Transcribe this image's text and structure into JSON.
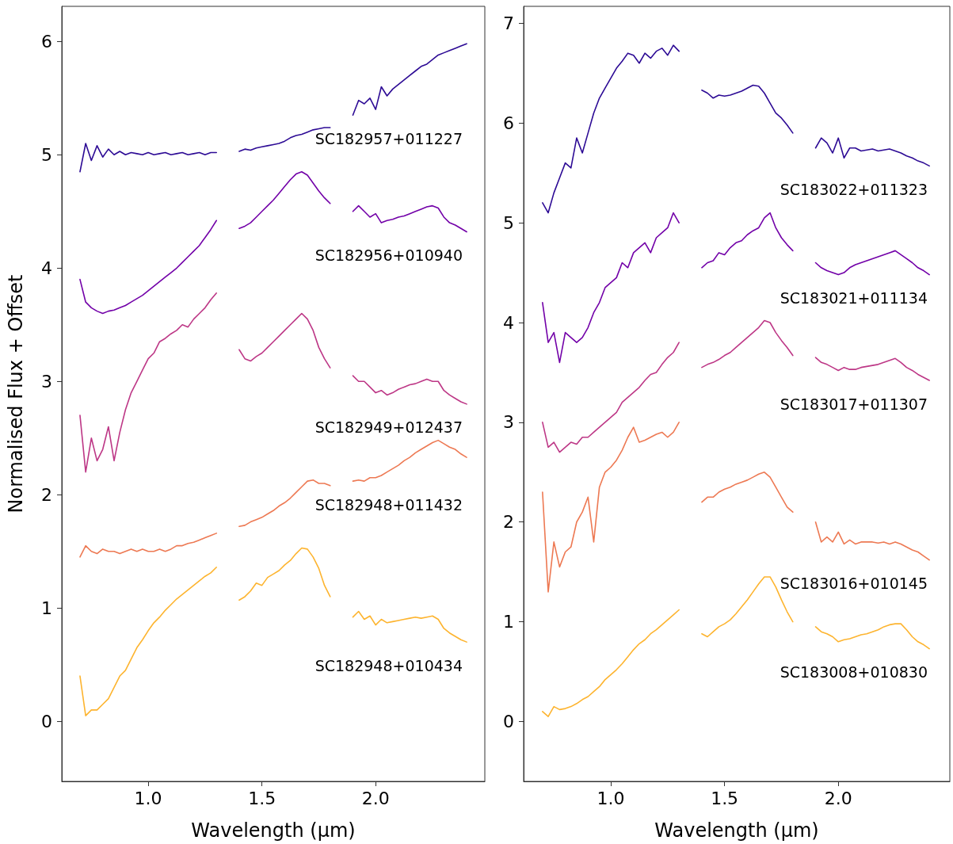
{
  "chart_data": [
    {
      "type": "line",
      "xlabel": "Wavelength (μm)",
      "ylabel": "Normalised Flux + Offset",
      "xlim": [
        0.62,
        2.48
      ],
      "ylim": [
        -0.53,
        6.31
      ],
      "xticks": [
        {
          "value": 1,
          "label": "1.0"
        },
        {
          "value": 1.5,
          "label": "1.5"
        },
        {
          "value": 2,
          "label": "2.0"
        }
      ],
      "yticks": [
        0,
        1,
        2,
        3,
        4,
        5,
        6
      ],
      "grid": false,
      "legend": false,
      "marker": "none",
      "line_style": "solid",
      "x": [
        0.7,
        0.725,
        0.75,
        0.775,
        0.8,
        0.825,
        0.85,
        0.875,
        0.9,
        0.925,
        0.95,
        0.975,
        1.0,
        1.025,
        1.05,
        1.075,
        1.1,
        1.125,
        1.15,
        1.175,
        1.2,
        1.225,
        1.25,
        1.275,
        1.3,
        1.35,
        1.4,
        1.425,
        1.45,
        1.475,
        1.5,
        1.525,
        1.55,
        1.575,
        1.6,
        1.625,
        1.65,
        1.675,
        1.7,
        1.725,
        1.75,
        1.775,
        1.8,
        1.85,
        1.9,
        1.925,
        1.95,
        1.975,
        2.0,
        2.025,
        2.05,
        2.075,
        2.1,
        2.125,
        2.15,
        2.175,
        2.2,
        2.225,
        2.25,
        2.275,
        2.3,
        2.325,
        2.35,
        2.375,
        2.4
      ],
      "series": [
        {
          "name": "SC182957+011227",
          "color": "#2d0b95",
          "values": [
            4.85,
            5.1,
            4.95,
            5.08,
            4.98,
            5.05,
            5.0,
            5.03,
            5.0,
            5.02,
            5.01,
            5.0,
            5.02,
            5.0,
            5.01,
            5.02,
            5.0,
            5.01,
            5.02,
            5.0,
            5.01,
            5.02,
            5.0,
            5.02,
            5.02,
            null,
            5.03,
            5.05,
            5.04,
            5.06,
            5.07,
            5.08,
            5.09,
            5.1,
            5.12,
            5.15,
            5.17,
            5.18,
            5.2,
            5.22,
            5.23,
            5.24,
            5.24,
            null,
            5.35,
            5.48,
            5.45,
            5.5,
            5.4,
            5.6,
            5.52,
            5.58,
            5.62,
            5.66,
            5.7,
            5.74,
            5.78,
            5.8,
            5.84,
            5.88,
            5.9,
            5.92,
            5.94,
            5.96,
            5.98
          ]
        },
        {
          "name": "SC182956+010940",
          "color": "#7201a8",
          "values": [
            3.9,
            3.7,
            3.65,
            3.62,
            3.6,
            3.62,
            3.63,
            3.65,
            3.67,
            3.7,
            3.73,
            3.76,
            3.8,
            3.84,
            3.88,
            3.92,
            3.96,
            4.0,
            4.05,
            4.1,
            4.15,
            4.2,
            4.27,
            4.34,
            4.42,
            null,
            4.35,
            4.37,
            4.4,
            4.45,
            4.5,
            4.55,
            4.6,
            4.66,
            4.72,
            4.78,
            4.83,
            4.85,
            4.82,
            4.75,
            4.68,
            4.62,
            4.57,
            null,
            4.5,
            4.55,
            4.5,
            4.45,
            4.48,
            4.4,
            4.42,
            4.43,
            4.45,
            4.46,
            4.48,
            4.5,
            4.52,
            4.54,
            4.55,
            4.53,
            4.45,
            4.4,
            4.38,
            4.35,
            4.32
          ]
        },
        {
          "name": "SC182949+012437",
          "color": "#bd3786",
          "values": [
            2.7,
            2.2,
            2.5,
            2.3,
            2.4,
            2.6,
            2.3,
            2.55,
            2.75,
            2.9,
            3.0,
            3.1,
            3.2,
            3.25,
            3.35,
            3.38,
            3.42,
            3.45,
            3.5,
            3.48,
            3.55,
            3.6,
            3.65,
            3.72,
            3.78,
            null,
            3.28,
            3.2,
            3.18,
            3.22,
            3.25,
            3.3,
            3.35,
            3.4,
            3.45,
            3.5,
            3.55,
            3.6,
            3.55,
            3.45,
            3.3,
            3.2,
            3.12,
            null,
            3.05,
            3.0,
            3.0,
            2.95,
            2.9,
            2.92,
            2.88,
            2.9,
            2.93,
            2.95,
            2.97,
            2.98,
            3.0,
            3.02,
            3.0,
            3.0,
            2.92,
            2.88,
            2.85,
            2.82,
            2.8
          ]
        },
        {
          "name": "SC182948+011432",
          "color": "#ed7953",
          "values": [
            1.45,
            1.55,
            1.5,
            1.48,
            1.52,
            1.5,
            1.5,
            1.48,
            1.5,
            1.52,
            1.5,
            1.52,
            1.5,
            1.5,
            1.52,
            1.5,
            1.52,
            1.55,
            1.55,
            1.57,
            1.58,
            1.6,
            1.62,
            1.64,
            1.66,
            null,
            1.72,
            1.73,
            1.76,
            1.78,
            1.8,
            1.83,
            1.86,
            1.9,
            1.93,
            1.97,
            2.02,
            2.07,
            2.12,
            2.13,
            2.1,
            2.1,
            2.08,
            null,
            2.12,
            2.13,
            2.12,
            2.15,
            2.15,
            2.17,
            2.2,
            2.23,
            2.26,
            2.3,
            2.33,
            2.37,
            2.4,
            2.43,
            2.46,
            2.48,
            2.45,
            2.42,
            2.4,
            2.36,
            2.33
          ]
        },
        {
          "name": "SC182948+010434",
          "color": "#fdb42f",
          "values": [
            0.4,
            0.05,
            0.1,
            0.1,
            0.15,
            0.2,
            0.3,
            0.4,
            0.45,
            0.55,
            0.65,
            0.72,
            0.8,
            0.87,
            0.92,
            0.98,
            1.03,
            1.08,
            1.12,
            1.16,
            1.2,
            1.24,
            1.28,
            1.31,
            1.36,
            null,
            1.07,
            1.1,
            1.15,
            1.22,
            1.2,
            1.27,
            1.3,
            1.33,
            1.38,
            1.42,
            1.48,
            1.53,
            1.52,
            1.45,
            1.35,
            1.2,
            1.1,
            null,
            0.92,
            0.97,
            0.9,
            0.93,
            0.85,
            0.9,
            0.87,
            0.88,
            0.89,
            0.9,
            0.91,
            0.92,
            0.91,
            0.92,
            0.93,
            0.9,
            0.82,
            0.78,
            0.75,
            0.72,
            0.7
          ]
        }
      ]
    },
    {
      "type": "line",
      "xlabel": "Wavelength (μm)",
      "xlim": [
        0.617,
        2.49
      ],
      "ylim": [
        -0.6,
        7.17
      ],
      "xticks": [
        {
          "value": 1,
          "label": "1.0"
        },
        {
          "value": 1.5,
          "label": "1.5"
        },
        {
          "value": 2,
          "label": "2.0"
        }
      ],
      "yticks": [
        0,
        1,
        2,
        3,
        4,
        5,
        6,
        7
      ],
      "grid": false,
      "legend": false,
      "marker": "none",
      "line_style": "solid",
      "x": [
        0.7,
        0.725,
        0.75,
        0.775,
        0.8,
        0.825,
        0.85,
        0.875,
        0.9,
        0.925,
        0.95,
        0.975,
        1.0,
        1.025,
        1.05,
        1.075,
        1.1,
        1.125,
        1.15,
        1.175,
        1.2,
        1.225,
        1.25,
        1.275,
        1.3,
        1.35,
        1.4,
        1.425,
        1.45,
        1.475,
        1.5,
        1.525,
        1.55,
        1.575,
        1.6,
        1.625,
        1.65,
        1.675,
        1.7,
        1.725,
        1.75,
        1.775,
        1.8,
        1.85,
        1.9,
        1.925,
        1.95,
        1.975,
        2.0,
        2.025,
        2.05,
        2.075,
        2.1,
        2.125,
        2.15,
        2.175,
        2.2,
        2.225,
        2.25,
        2.275,
        2.3,
        2.325,
        2.35,
        2.375,
        2.4
      ],
      "series": [
        {
          "name": "SC183022+011323",
          "color": "#2d0b95",
          "values": [
            5.2,
            5.1,
            5.3,
            5.45,
            5.6,
            5.55,
            5.85,
            5.7,
            5.9,
            6.1,
            6.25,
            6.35,
            6.45,
            6.55,
            6.62,
            6.7,
            6.68,
            6.6,
            6.7,
            6.65,
            6.72,
            6.75,
            6.68,
            6.78,
            6.72,
            null,
            6.33,
            6.3,
            6.25,
            6.28,
            6.27,
            6.28,
            6.3,
            6.32,
            6.35,
            6.38,
            6.37,
            6.3,
            6.2,
            6.1,
            6.05,
            5.98,
            5.9,
            null,
            5.75,
            5.85,
            5.8,
            5.7,
            5.85,
            5.65,
            5.75,
            5.75,
            5.72,
            5.73,
            5.74,
            5.72,
            5.73,
            5.74,
            5.72,
            5.7,
            5.67,
            5.65,
            5.62,
            5.6,
            5.57
          ]
        },
        {
          "name": "SC183021+011134",
          "color": "#7201a8",
          "values": [
            4.2,
            3.8,
            3.9,
            3.6,
            3.9,
            3.85,
            3.8,
            3.85,
            3.95,
            4.1,
            4.2,
            4.35,
            4.4,
            4.45,
            4.6,
            4.55,
            4.7,
            4.75,
            4.8,
            4.7,
            4.85,
            4.9,
            4.95,
            5.1,
            5.0,
            null,
            4.55,
            4.6,
            4.62,
            4.7,
            4.68,
            4.75,
            4.8,
            4.82,
            4.88,
            4.92,
            4.95,
            5.05,
            5.1,
            4.95,
            4.85,
            4.78,
            4.72,
            null,
            4.6,
            4.55,
            4.52,
            4.5,
            4.48,
            4.5,
            4.55,
            4.58,
            4.6,
            4.62,
            4.64,
            4.66,
            4.68,
            4.7,
            4.72,
            4.68,
            4.64,
            4.6,
            4.55,
            4.52,
            4.48
          ]
        },
        {
          "name": "SC183017+011307",
          "color": "#bd3786",
          "values": [
            3.0,
            2.75,
            2.8,
            2.7,
            2.75,
            2.8,
            2.78,
            2.85,
            2.85,
            2.9,
            2.95,
            3.0,
            3.05,
            3.1,
            3.2,
            3.25,
            3.3,
            3.35,
            3.42,
            3.48,
            3.5,
            3.58,
            3.65,
            3.7,
            3.8,
            null,
            3.55,
            3.58,
            3.6,
            3.63,
            3.67,
            3.7,
            3.75,
            3.8,
            3.85,
            3.9,
            3.95,
            4.02,
            4.0,
            3.9,
            3.82,
            3.75,
            3.67,
            null,
            3.65,
            3.6,
            3.58,
            3.55,
            3.52,
            3.55,
            3.53,
            3.53,
            3.55,
            3.56,
            3.57,
            3.58,
            3.6,
            3.62,
            3.64,
            3.6,
            3.55,
            3.52,
            3.48,
            3.45,
            3.42
          ]
        },
        {
          "name": "SC183016+010145",
          "color": "#ed7953",
          "values": [
            2.3,
            1.3,
            1.8,
            1.55,
            1.7,
            1.75,
            2.0,
            2.1,
            2.25,
            1.8,
            2.35,
            2.5,
            2.55,
            2.62,
            2.72,
            2.85,
            2.95,
            2.8,
            2.82,
            2.85,
            2.88,
            2.9,
            2.85,
            2.9,
            3.0,
            null,
            2.2,
            2.25,
            2.25,
            2.3,
            2.33,
            2.35,
            2.38,
            2.4,
            2.42,
            2.45,
            2.48,
            2.5,
            2.45,
            2.35,
            2.25,
            2.15,
            2.1,
            null,
            2.0,
            1.8,
            1.85,
            1.8,
            1.9,
            1.78,
            1.82,
            1.78,
            1.8,
            1.8,
            1.8,
            1.79,
            1.8,
            1.78,
            1.8,
            1.78,
            1.75,
            1.72,
            1.7,
            1.66,
            1.62
          ]
        },
        {
          "name": "SC183008+010830",
          "color": "#fdb42f",
          "values": [
            0.1,
            0.05,
            0.15,
            0.12,
            0.13,
            0.15,
            0.18,
            0.22,
            0.25,
            0.3,
            0.35,
            0.42,
            0.47,
            0.52,
            0.58,
            0.65,
            0.72,
            0.78,
            0.82,
            0.88,
            0.92,
            0.97,
            1.02,
            1.07,
            1.12,
            null,
            0.88,
            0.85,
            0.9,
            0.95,
            0.98,
            1.02,
            1.08,
            1.15,
            1.22,
            1.3,
            1.38,
            1.45,
            1.45,
            1.35,
            1.22,
            1.1,
            1.0,
            null,
            0.95,
            0.9,
            0.88,
            0.85,
            0.8,
            0.82,
            0.83,
            0.85,
            0.87,
            0.88,
            0.9,
            0.92,
            0.95,
            0.97,
            0.98,
            0.98,
            0.92,
            0.85,
            0.8,
            0.77,
            0.73
          ]
        }
      ]
    }
  ]
}
